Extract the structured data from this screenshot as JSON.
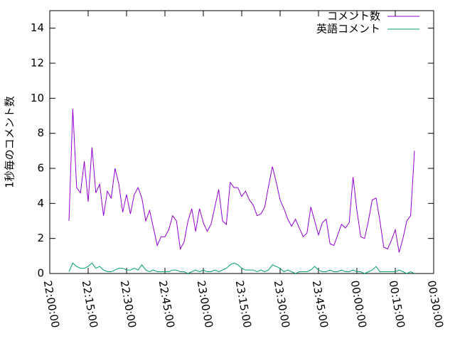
{
  "chart_data": {
    "type": "line",
    "ylabel": "1秒毎のコメント数",
    "x": [
      "22:07:30",
      "22:09:00",
      "22:10:30",
      "22:12:00",
      "22:13:30",
      "22:15:00",
      "22:16:30",
      "22:18:00",
      "22:19:30",
      "22:21:00",
      "22:22:30",
      "22:24:00",
      "22:25:30",
      "22:27:00",
      "22:28:30",
      "22:30:00",
      "22:31:30",
      "22:33:00",
      "22:34:30",
      "22:36:00",
      "22:37:30",
      "22:39:00",
      "22:40:30",
      "22:42:00",
      "22:43:30",
      "22:45:00",
      "22:46:30",
      "22:48:00",
      "22:49:30",
      "22:51:00",
      "22:52:30",
      "22:54:00",
      "22:55:30",
      "22:57:00",
      "22:58:30",
      "23:00:00",
      "23:01:30",
      "23:03:00",
      "23:04:30",
      "23:06:00",
      "23:07:30",
      "23:09:00",
      "23:10:30",
      "23:12:00",
      "23:13:30",
      "23:15:00",
      "23:16:30",
      "23:18:00",
      "23:19:30",
      "23:21:00",
      "23:22:30",
      "23:24:00",
      "23:25:30",
      "23:27:00",
      "23:28:30",
      "23:30:00",
      "23:31:30",
      "23:33:00",
      "23:34:30",
      "23:36:00",
      "23:37:30",
      "23:39:00",
      "23:40:30",
      "23:42:00",
      "23:43:30",
      "23:45:00",
      "23:46:30",
      "23:48:00",
      "23:49:30",
      "23:51:00",
      "23:52:30",
      "23:54:00",
      "23:55:30",
      "23:57:00",
      "23:58:30",
      "00:00:00",
      "00:01:30",
      "00:03:00",
      "00:04:30",
      "00:06:00",
      "00:07:30",
      "00:09:00",
      "00:10:30",
      "00:12:00",
      "00:13:30",
      "00:15:00",
      "00:16:30",
      "00:18:00",
      "00:19:30",
      "00:21:00",
      "00:22:30"
    ],
    "series": [
      {
        "name": "コメント数",
        "color": "#9400d3",
        "values": [
          3.0,
          9.4,
          4.9,
          4.6,
          6.4,
          4.1,
          7.2,
          4.6,
          5.1,
          3.3,
          4.7,
          4.3,
          6.0,
          5.1,
          3.5,
          4.5,
          3.4,
          4.5,
          4.9,
          4.3,
          3.0,
          3.6,
          2.6,
          1.6,
          2.1,
          2.1,
          2.5,
          3.3,
          3.0,
          1.4,
          1.8,
          3.0,
          3.7,
          2.4,
          3.7,
          2.9,
          2.4,
          2.8,
          3.8,
          4.8,
          3.0,
          2.8,
          5.2,
          4.9,
          4.9,
          4.4,
          4.7,
          4.2,
          3.9,
          3.3,
          3.4,
          3.8,
          5.0,
          6.1,
          5.2,
          4.2,
          3.7,
          3.1,
          2.7,
          3.1,
          2.6,
          2.1,
          2.3,
          3.8,
          3.0,
          2.2,
          2.9,
          3.1,
          1.7,
          1.6,
          2.2,
          2.8,
          2.6,
          2.9,
          5.5,
          3.6,
          2.1,
          2.0,
          3.0,
          4.2,
          4.3,
          3.0,
          1.5,
          1.4,
          1.9,
          2.5,
          1.2,
          2.0,
          3.0,
          3.3,
          7.0
        ]
      },
      {
        "name": "英語コメント",
        "color": "#009e73",
        "values": [
          0.1,
          0.6,
          0.4,
          0.3,
          0.3,
          0.4,
          0.6,
          0.3,
          0.4,
          0.2,
          0.1,
          0.1,
          0.2,
          0.3,
          0.3,
          0.2,
          0.2,
          0.3,
          0.2,
          0.5,
          0.2,
          0.1,
          0.2,
          0.1,
          0.1,
          0.1,
          0.1,
          0.2,
          0.2,
          0.1,
          0.1,
          0.0,
          0.1,
          0.2,
          0.1,
          0.2,
          0.1,
          0.1,
          0.2,
          0.1,
          0.2,
          0.3,
          0.5,
          0.6,
          0.5,
          0.3,
          0.2,
          0.2,
          0.2,
          0.1,
          0.2,
          0.1,
          0.2,
          0.5,
          0.4,
          0.3,
          0.1,
          0.2,
          0.1,
          0.0,
          0.1,
          0.1,
          0.1,
          0.2,
          0.4,
          0.2,
          0.1,
          0.1,
          0.2,
          0.1,
          0.1,
          0.2,
          0.1,
          0.1,
          0.2,
          0.1,
          0.1,
          0.0,
          0.1,
          0.2,
          0.4,
          0.1,
          0.1,
          0.1,
          0.1,
          0.1,
          0.2,
          0.1,
          0.0,
          0.1,
          0.0
        ]
      }
    ],
    "xlim": [
      "22:00:00",
      "00:30:00"
    ],
    "xticks": [
      "22:00:00",
      "22:15:00",
      "22:30:00",
      "22:45:00",
      "23:00:00",
      "23:15:00",
      "23:30:00",
      "23:45:00",
      "00:00:00",
      "00:15:00",
      "00:30:00"
    ],
    "ylim": [
      0,
      15
    ],
    "yticks": [
      0,
      2,
      4,
      6,
      8,
      10,
      12,
      14
    ],
    "legend": "top-right"
  }
}
